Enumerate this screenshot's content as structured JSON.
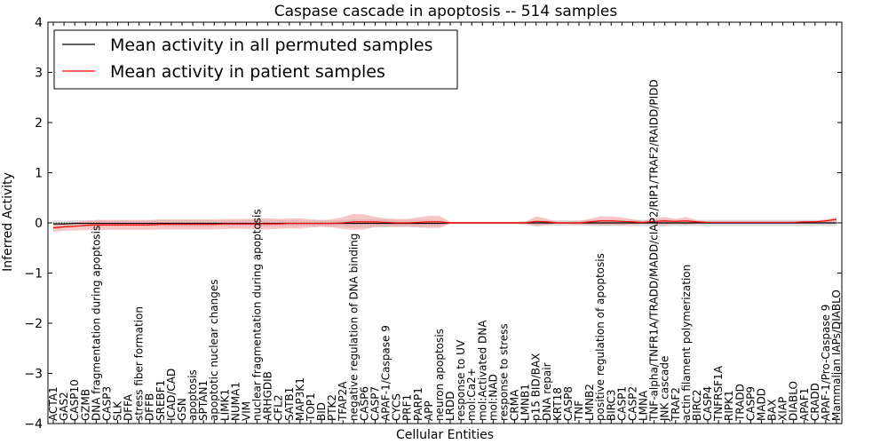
{
  "chart_data": {
    "type": "line",
    "title": "Caspase cascade in apoptosis -- 514 samples",
    "xlabel": "Cellular Entities",
    "ylabel": "Inferred Activity",
    "ylim": [
      -4,
      4
    ],
    "yticks": [
      -4,
      -3,
      -2,
      -1,
      0,
      1,
      2,
      3,
      4
    ],
    "legend_position": "top-left",
    "categories": [
      "ACTA1",
      "GAS2",
      "CASP10",
      "GZMB",
      "DNA fragmentation during apoptosis",
      "CASP3",
      "SLK",
      "DFFA",
      "stress fiber formation",
      "DFFB",
      "SREBF1",
      "ICAD/CAD",
      "GSN",
      "apoptosis",
      "SPTAN1",
      "apoptotic nuclear changes",
      "LIMK1",
      "NUMA1",
      "VIM",
      "nuclear fragmentation during apoptosis",
      "ARHGDIB",
      "CFL2",
      "SATB1",
      "MAP3K1",
      "TOP1",
      "BID",
      "PTK2",
      "TFAP2A",
      "negative regulation of DNA binding",
      "CASP6",
      "CASP7",
      "APAF-1/Caspase 9",
      "CYCS",
      "PRF1",
      "PARP1",
      "APP",
      "neuron apoptosis",
      "LRDD",
      "response to UV",
      "mol:Ca2+",
      "mol:Activated DNA",
      "mol:NAD",
      "response to stress",
      "CRMA",
      "LMNB1",
      "p15 BID/BAX",
      "DNA repair",
      "KRT18",
      "CASP8",
      "TNF",
      "LMNB2",
      "positive regulation of apoptosis",
      "BIRC3",
      "CASP1",
      "CASP2",
      "LMNA",
      "TNF-alpha/TNFR1A/TRADD/MADD/cIAP2/RIP1/TRAF2/RAIDD/PIDD",
      "JNK cascade",
      "TRAF2",
      "actin filament polymerization",
      "BIRC2",
      "CASP4",
      "TNFRSF1A",
      "RIPK1",
      "TRADD",
      "CASP9",
      "MADD",
      "BAX",
      "XIAP",
      "DIABLO",
      "APAF1",
      "CRADD",
      "APAF-1/Pro-Caspase 9",
      "Mammalian IAPs/DIABLO"
    ],
    "series": [
      {
        "name": "Mean activity in all permuted samples",
        "color": "#000000",
        "band_color": "#bbbbbb",
        "values": [
          -0.02,
          -0.02,
          -0.01,
          -0.01,
          -0.01,
          -0.01,
          -0.01,
          -0.01,
          -0.01,
          -0.01,
          -0.01,
          -0.01,
          -0.01,
          -0.01,
          -0.01,
          -0.01,
          -0.01,
          -0.01,
          -0.01,
          -0.01,
          -0.01,
          -0.01,
          -0.01,
          -0.01,
          -0.01,
          -0.01,
          -0.01,
          -0.01,
          -0.01,
          -0.01,
          -0.01,
          -0.01,
          -0.01,
          -0.01,
          -0.01,
          -0.01,
          -0.01,
          0.0,
          0.0,
          0.0,
          0.0,
          0.0,
          0.0,
          0.0,
          0.0,
          0.0,
          0.0,
          0.0,
          0.0,
          0.0,
          0.0,
          0.0,
          0.0,
          0.0,
          0.0,
          0.0,
          0.0,
          0.0,
          0.0,
          0.0,
          0.0,
          0.0,
          0.0,
          0.0,
          0.0,
          0.0,
          0.0,
          0.0,
          0.0,
          0.0,
          0.0,
          0.0,
          0.0,
          0.0
        ],
        "spread": [
          0.07,
          0.06,
          0.06,
          0.06,
          0.06,
          0.06,
          0.06,
          0.06,
          0.06,
          0.06,
          0.06,
          0.06,
          0.06,
          0.06,
          0.06,
          0.06,
          0.06,
          0.06,
          0.06,
          0.06,
          0.06,
          0.06,
          0.06,
          0.06,
          0.06,
          0.06,
          0.06,
          0.07,
          0.08,
          0.08,
          0.08,
          0.08,
          0.07,
          0.07,
          0.07,
          0.07,
          0.06,
          0.02,
          0.02,
          0.02,
          0.02,
          0.02,
          0.02,
          0.02,
          0.04,
          0.05,
          0.05,
          0.05,
          0.05,
          0.05,
          0.06,
          0.06,
          0.06,
          0.06,
          0.06,
          0.06,
          0.07,
          0.07,
          0.06,
          0.06,
          0.06,
          0.06,
          0.06,
          0.06,
          0.06,
          0.06,
          0.06,
          0.06,
          0.06,
          0.06,
          0.06,
          0.06,
          0.06,
          0.06
        ]
      },
      {
        "name": "Mean activity in patient samples",
        "color": "#ff0000",
        "band_color": "#f2a0a0",
        "values": [
          -0.1,
          -0.08,
          -0.07,
          -0.05,
          -0.04,
          -0.04,
          -0.04,
          -0.04,
          -0.04,
          -0.04,
          -0.03,
          -0.03,
          -0.03,
          -0.03,
          -0.03,
          -0.03,
          -0.02,
          -0.02,
          -0.02,
          -0.02,
          -0.02,
          -0.02,
          -0.01,
          -0.01,
          -0.01,
          -0.01,
          -0.01,
          0.0,
          0.02,
          0.02,
          0.02,
          0.01,
          0.0,
          0.0,
          0.01,
          0.02,
          0.02,
          0.0,
          0.0,
          0.0,
          0.0,
          0.0,
          0.0,
          0.0,
          0.0,
          0.03,
          0.02,
          0.0,
          0.0,
          0.0,
          0.02,
          0.04,
          0.04,
          0.03,
          0.02,
          0.01,
          0.03,
          0.04,
          0.03,
          0.04,
          0.02,
          0.01,
          0.01,
          0.01,
          0.01,
          0.01,
          0.01,
          0.01,
          0.01,
          0.01,
          0.02,
          0.02,
          0.04,
          0.07
        ],
        "spread": [
          0.08,
          0.08,
          0.08,
          0.09,
          0.1,
          0.1,
          0.1,
          0.1,
          0.1,
          0.1,
          0.1,
          0.1,
          0.1,
          0.1,
          0.1,
          0.1,
          0.1,
          0.1,
          0.1,
          0.11,
          0.11,
          0.1,
          0.1,
          0.1,
          0.08,
          0.07,
          0.08,
          0.12,
          0.16,
          0.15,
          0.1,
          0.08,
          0.08,
          0.08,
          0.1,
          0.12,
          0.12,
          0.02,
          0.02,
          0.02,
          0.02,
          0.02,
          0.02,
          0.02,
          0.02,
          0.1,
          0.06,
          0.02,
          0.02,
          0.04,
          0.06,
          0.09,
          0.09,
          0.08,
          0.05,
          0.03,
          0.06,
          0.08,
          0.05,
          0.08,
          0.03,
          0.02,
          0.02,
          0.02,
          0.02,
          0.02,
          0.02,
          0.02,
          0.02,
          0.02,
          0.02,
          0.02,
          0.03,
          0.05
        ]
      }
    ]
  }
}
